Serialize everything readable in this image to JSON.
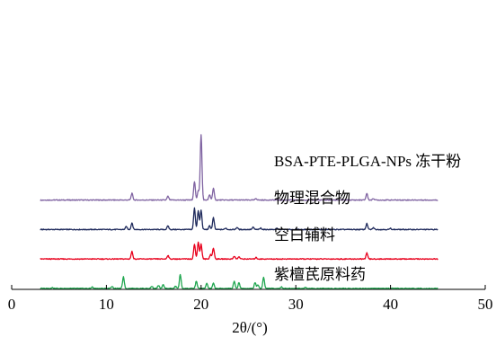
{
  "chart_data": {
    "type": "line",
    "xlabel": "2θ/(°)",
    "ylabel": "",
    "xlim": [
      0,
      50
    ],
    "x_ticks": [
      "0",
      "10",
      "20",
      "30",
      "40",
      "50"
    ],
    "y_axis_visible": false,
    "grid": false,
    "legend": "none (labels placed above each trace)",
    "series": [
      {
        "name": "BSA-PTE-PLGA-NPs 冻干粉",
        "color": "#8064a2",
        "baseline": 12.0,
        "x_range": [
          3,
          45
        ],
        "peaks": [
          {
            "x": 12.7,
            "h": 0.9
          },
          {
            "x": 16.5,
            "h": 0.5
          },
          {
            "x": 19.3,
            "h": 2.5
          },
          {
            "x": 19.7,
            "h": 1.3
          },
          {
            "x": 20.0,
            "h": 8.9
          },
          {
            "x": 20.9,
            "h": 0.7
          },
          {
            "x": 21.3,
            "h": 1.6
          },
          {
            "x": 25.8,
            "h": 0.2
          },
          {
            "x": 37.5,
            "h": 0.9
          },
          {
            "x": 38.2,
            "h": 0.2
          }
        ]
      },
      {
        "name": "物理混合物",
        "color": "#1f2a5c",
        "baseline": 8.0,
        "x_range": [
          3,
          45
        ],
        "peaks": [
          {
            "x": 12.1,
            "h": 0.4
          },
          {
            "x": 12.7,
            "h": 0.9
          },
          {
            "x": 16.5,
            "h": 0.5
          },
          {
            "x": 19.3,
            "h": 2.9
          },
          {
            "x": 19.7,
            "h": 2.5
          },
          {
            "x": 20.0,
            "h": 2.6
          },
          {
            "x": 20.9,
            "h": 0.5
          },
          {
            "x": 21.3,
            "h": 1.6
          },
          {
            "x": 22.6,
            "h": 0.2
          },
          {
            "x": 23.8,
            "h": 0.3
          },
          {
            "x": 25.5,
            "h": 0.3
          },
          {
            "x": 26.3,
            "h": 0.2
          },
          {
            "x": 28.0,
            "h": 0.15
          },
          {
            "x": 37.5,
            "h": 0.8
          },
          {
            "x": 38.2,
            "h": 0.25
          },
          {
            "x": 40.0,
            "h": 0.15
          }
        ]
      },
      {
        "name": "空白辅料",
        "color": "#e8001c",
        "baseline": 4.0,
        "x_range": [
          3,
          45
        ],
        "peaks": [
          {
            "x": 12.7,
            "h": 1.0
          },
          {
            "x": 16.5,
            "h": 0.5
          },
          {
            "x": 19.3,
            "h": 2.0
          },
          {
            "x": 19.7,
            "h": 2.3
          },
          {
            "x": 20.0,
            "h": 2.0
          },
          {
            "x": 21.0,
            "h": 0.6
          },
          {
            "x": 21.3,
            "h": 1.5
          },
          {
            "x": 23.5,
            "h": 0.4
          },
          {
            "x": 24.0,
            "h": 0.3
          },
          {
            "x": 25.8,
            "h": 0.2
          },
          {
            "x": 37.5,
            "h": 0.8
          }
        ]
      },
      {
        "name": "紫檀芪原料药",
        "color": "#1fa64f",
        "baseline": 0.0,
        "x_range": [
          3,
          45
        ],
        "peaks": [
          {
            "x": 4.3,
            "h": 0.1
          },
          {
            "x": 8.5,
            "h": 0.2
          },
          {
            "x": 10.6,
            "h": 0.3
          },
          {
            "x": 11.8,
            "h": 1.6
          },
          {
            "x": 14.8,
            "h": 0.3
          },
          {
            "x": 15.5,
            "h": 0.4
          },
          {
            "x": 16.0,
            "h": 0.5
          },
          {
            "x": 17.3,
            "h": 0.3
          },
          {
            "x": 17.8,
            "h": 1.9
          },
          {
            "x": 19.5,
            "h": 1.0
          },
          {
            "x": 20.6,
            "h": 0.7
          },
          {
            "x": 21.3,
            "h": 0.7
          },
          {
            "x": 23.5,
            "h": 1.0
          },
          {
            "x": 24.0,
            "h": 0.8
          },
          {
            "x": 25.7,
            "h": 0.8
          },
          {
            "x": 26.0,
            "h": 0.5
          },
          {
            "x": 26.6,
            "h": 1.5
          },
          {
            "x": 28.5,
            "h": 0.2
          },
          {
            "x": 31.0,
            "h": 0.15
          }
        ]
      }
    ]
  }
}
